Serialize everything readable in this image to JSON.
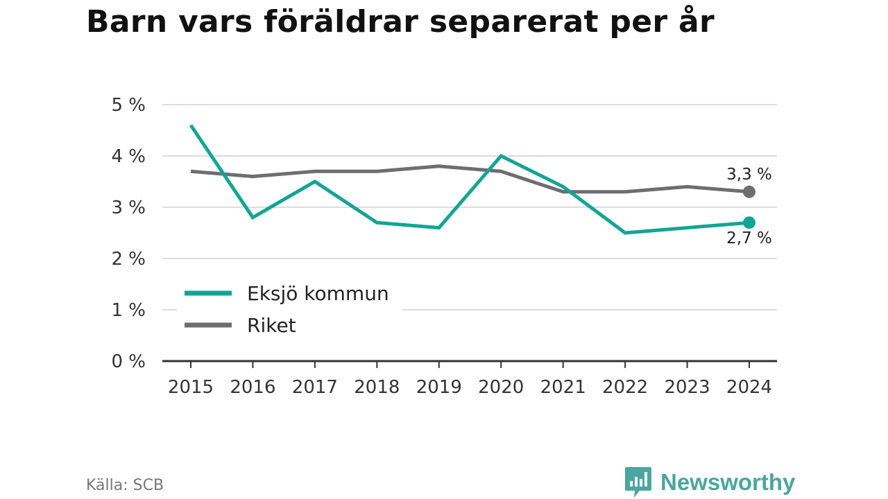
{
  "title": "Barn vars föräldrar separerat per år",
  "source": "Källa: SCB",
  "brand": {
    "name": "Newsworthy",
    "icon": "newsworthy-logo-icon",
    "color": "#4aa69e"
  },
  "chart_data": {
    "type": "line",
    "title": "Barn vars föräldrar separerat per år",
    "x": [
      "2015",
      "2016",
      "2017",
      "2018",
      "2019",
      "2020",
      "2021",
      "2022",
      "2023",
      "2024"
    ],
    "ylim": [
      0,
      5
    ],
    "yticks": [
      {
        "value": 0,
        "label": "0 %"
      },
      {
        "value": 1,
        "label": "1 %"
      },
      {
        "value": 2,
        "label": "2 %"
      },
      {
        "value": 3,
        "label": "3 %"
      },
      {
        "value": 4,
        "label": "4 %"
      },
      {
        "value": 5,
        "label": "5 %"
      }
    ],
    "grid": true,
    "legend_position": "bottom-left",
    "series": [
      {
        "name": "Eksjö kommun",
        "color": "#12a594",
        "values": [
          4.6,
          2.8,
          3.5,
          2.7,
          2.6,
          4.0,
          3.4,
          2.5,
          2.6,
          2.7
        ],
        "end_label": "2,7 %",
        "end_label_position": "below"
      },
      {
        "name": "Riket",
        "color": "#6e6d72",
        "values": [
          3.7,
          3.6,
          3.7,
          3.7,
          3.8,
          3.7,
          3.3,
          3.3,
          3.4,
          3.3
        ],
        "end_label": "3,3 %",
        "end_label_position": "above"
      }
    ]
  }
}
